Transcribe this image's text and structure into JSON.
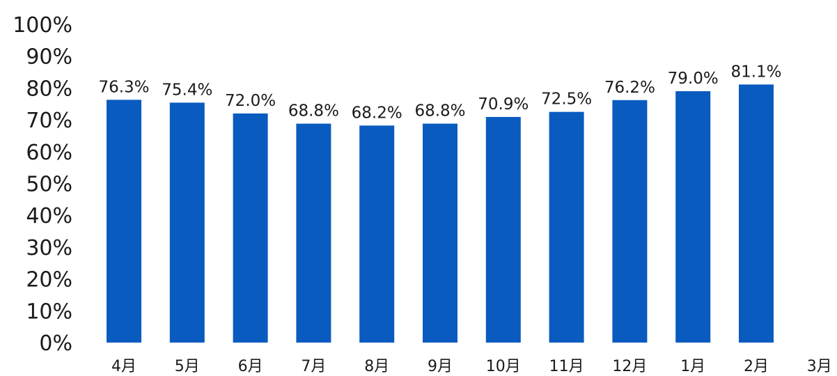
{
  "chart_data": {
    "type": "bar",
    "title": "",
    "xlabel": "",
    "ylabel": "",
    "categories": [
      "4月",
      "5月",
      "6月",
      "7月",
      "8月",
      "9月",
      "10月",
      "11月",
      "12月",
      "1月",
      "2月",
      "3月"
    ],
    "values": [
      76.3,
      75.4,
      72.0,
      68.8,
      68.2,
      68.8,
      70.9,
      72.5,
      76.2,
      79.0,
      81.1,
      null
    ],
    "data_labels": [
      "76.3%",
      "75.4%",
      "72.0%",
      "68.8%",
      "68.2%",
      "68.8%",
      "70.9%",
      "72.5%",
      "76.2%",
      "79.0%",
      "81.1%",
      ""
    ],
    "ylim": [
      0,
      100
    ],
    "y_ticks": [
      0,
      10,
      20,
      30,
      40,
      50,
      60,
      70,
      80,
      90,
      100
    ],
    "y_tick_labels": [
      "0%",
      "10%",
      "20%",
      "30%",
      "40%",
      "50%",
      "60%",
      "70%",
      "80%",
      "90%",
      "100%"
    ],
    "grid": false,
    "legend": "none",
    "colors": {
      "bar": "#0a5bbf",
      "text": "#1a1a1a",
      "background": "#ffffff"
    }
  }
}
